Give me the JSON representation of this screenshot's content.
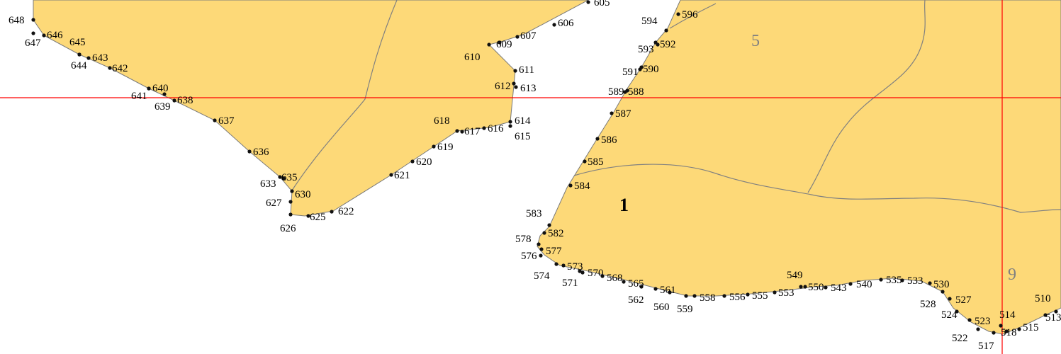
{
  "parcels": [
    {
      "id": "parcel-1",
      "label": "1",
      "style": "main"
    },
    {
      "id": "parcel-5",
      "label": "5",
      "style": "neighbor"
    },
    {
      "id": "parcel-9",
      "label": "9",
      "style": "neighbor"
    }
  ],
  "point_labels": [
    "648",
    "647",
    "646",
    "645",
    "643",
    "644",
    "642",
    "641",
    "640",
    "639",
    "638",
    "637",
    "636",
    "633",
    "635",
    "630",
    "627",
    "626",
    "625",
    "622",
    "621",
    "620",
    "619",
    "618",
    "617",
    "616",
    "614",
    "615",
    "612",
    "613",
    "611",
    "610",
    "609",
    "607",
    "606",
    "605",
    "596",
    "594",
    "593",
    "592",
    "591",
    "590",
    "589",
    "588",
    "587",
    "586",
    "585",
    "584",
    "583",
    "582",
    "578",
    "577",
    "576",
    "574",
    "573",
    "571",
    "570",
    "568",
    "565",
    "562",
    "561",
    "560",
    "559",
    "558",
    "556",
    "555",
    "553",
    "549",
    "550",
    "543",
    "540",
    "535",
    "533",
    "530",
    "528",
    "527",
    "524",
    "523",
    "522",
    "517",
    "518",
    "514",
    "515",
    "510",
    "513"
  ],
  "colors": {
    "land": "#fdd978",
    "boundary": "#808080",
    "grid": "#ff0000",
    "text": "#000000",
    "neighbor_label": "#808080"
  }
}
